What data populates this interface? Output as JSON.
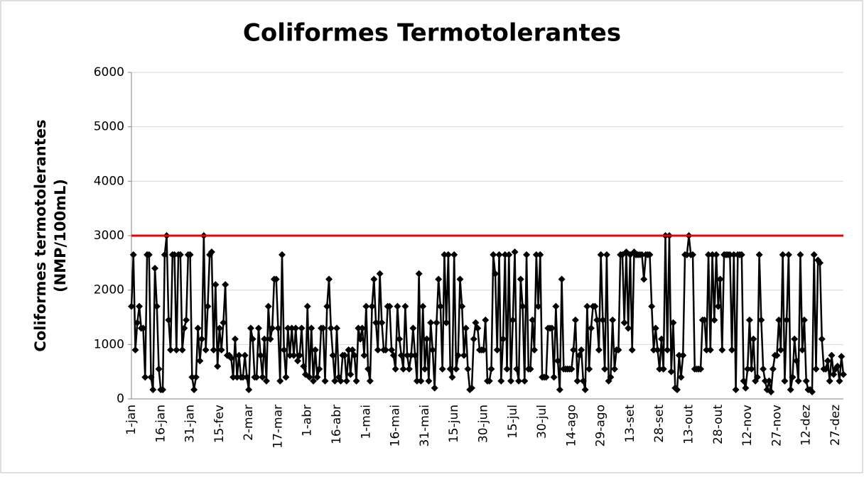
{
  "chart_data": {
    "type": "line",
    "title": "Coliformes Termotolerantes",
    "y_label": [
      "Coliformes termotolerantes",
      "(NMP/100mL)"
    ],
    "ylim": [
      0,
      6000
    ],
    "yticks": [
      0,
      1000,
      2000,
      3000,
      4000,
      5000,
      6000
    ],
    "grid": true,
    "reference_line": {
      "value": 3000,
      "color": "#e8000b"
    },
    "categories": [
      "1-jan",
      null,
      null,
      null,
      null,
      null,
      null,
      null,
      null,
      null,
      null,
      null,
      null,
      null,
      null,
      "16-jan",
      null,
      null,
      null,
      null,
      null,
      null,
      null,
      null,
      null,
      null,
      null,
      null,
      null,
      null,
      "31-jan",
      null,
      null,
      null,
      null,
      null,
      null,
      null,
      null,
      null,
      null,
      null,
      null,
      null,
      null,
      "15-fev",
      null,
      null,
      null,
      null,
      null,
      null,
      null,
      null,
      null,
      null,
      null,
      null,
      null,
      null,
      "2-mar",
      null,
      null,
      null,
      null,
      null,
      null,
      null,
      null,
      null,
      null,
      null,
      null,
      null,
      null,
      "17-mar",
      null,
      null,
      null,
      null,
      null,
      null,
      null,
      null,
      null,
      null,
      null,
      null,
      null,
      null,
      "1-abr",
      null,
      null,
      null,
      null,
      null,
      null,
      null,
      null,
      null,
      null,
      null,
      null,
      null,
      null,
      "16-abr",
      null,
      null,
      null,
      null,
      null,
      null,
      null,
      null,
      null,
      null,
      null,
      null,
      null,
      null,
      "1-mai",
      null,
      null,
      null,
      null,
      null,
      null,
      null,
      null,
      null,
      null,
      null,
      null,
      null,
      null,
      "16-mai",
      null,
      null,
      null,
      null,
      null,
      null,
      null,
      null,
      null,
      null,
      null,
      null,
      null,
      null,
      "31-mai",
      null,
      null,
      null,
      null,
      null,
      null,
      null,
      null,
      null,
      null,
      null,
      null,
      null,
      null,
      "15-jun",
      null,
      null,
      null,
      null,
      null,
      null,
      null,
      null,
      null,
      null,
      null,
      null,
      null,
      null,
      "30-jun",
      null,
      null,
      null,
      null,
      null,
      null,
      null,
      null,
      null,
      null,
      null,
      null,
      null,
      null,
      "15-jul",
      null,
      null,
      null,
      null,
      null,
      null,
      null,
      null,
      null,
      null,
      null,
      null,
      null,
      null,
      "30-jul",
      null,
      null,
      null,
      null,
      null,
      null,
      null,
      null,
      null,
      null,
      null,
      null,
      null,
      null,
      "14-ago",
      null,
      null,
      null,
      null,
      null,
      null,
      null,
      null,
      null,
      null,
      null,
      null,
      null,
      null,
      "29-ago",
      null,
      null,
      null,
      null,
      null,
      null,
      null,
      null,
      null,
      null,
      null,
      null,
      null,
      null,
      "13-set",
      null,
      null,
      null,
      null,
      null,
      null,
      null,
      null,
      null,
      null,
      null,
      null,
      null,
      null,
      "28-set",
      null,
      null,
      null,
      null,
      null,
      null,
      null,
      null,
      null,
      null,
      null,
      null,
      null,
      null,
      "13-out",
      null,
      null,
      null,
      null,
      null,
      null,
      null,
      null,
      null,
      null,
      null,
      null,
      null,
      null,
      "28-out",
      null,
      null,
      null,
      null,
      null,
      null,
      null,
      null,
      null,
      null,
      null,
      null,
      null,
      null,
      "12-nov",
      null,
      null,
      null,
      null,
      null,
      null,
      null,
      null,
      null,
      null,
      null,
      null,
      null,
      null,
      "27-nov",
      null,
      null,
      null,
      null,
      null,
      null,
      null,
      null,
      null,
      null,
      null,
      null,
      null,
      null,
      "12-dez",
      null,
      null,
      null,
      null,
      null,
      null,
      null,
      null,
      null,
      null,
      null,
      null,
      null,
      null,
      "27-dez",
      null,
      null,
      null,
      null
    ],
    "color": "#000000",
    "values": [
      1700,
      2650,
      900,
      1400,
      1700,
      1300,
      1300,
      400,
      2650,
      2650,
      400,
      170,
      2400,
      1700,
      550,
      170,
      170,
      2650,
      3000,
      1450,
      900,
      2650,
      2650,
      900,
      2650,
      2650,
      900,
      1300,
      1450,
      2650,
      2650,
      400,
      170,
      400,
      1300,
      700,
      1100,
      3000,
      900,
      1700,
      2650,
      2700,
      900,
      2100,
      600,
      1300,
      900,
      1400,
      2100,
      800,
      800,
      750,
      400,
      1100,
      400,
      800,
      400,
      400,
      800,
      400,
      170,
      1300,
      1100,
      400,
      400,
      1300,
      800,
      400,
      1100,
      330,
      1700,
      1100,
      1300,
      2200,
      2200,
      1300,
      330,
      2650,
      900,
      400,
      1300,
      800,
      1300,
      800,
      1300,
      700,
      800,
      1300,
      600,
      450,
      1700,
      400,
      1300,
      330,
      900,
      400,
      550,
      1300,
      1300,
      330,
      1700,
      2200,
      1300,
      800,
      330,
      1300,
      400,
      330,
      800,
      800,
      330,
      900,
      450,
      900,
      800,
      330,
      1300,
      1100,
      1300,
      800,
      1700,
      550,
      330,
      1700,
      2200,
      1400,
      900,
      2300,
      1400,
      900,
      900,
      1700,
      1700,
      900,
      800,
      550,
      1700,
      1100,
      800,
      550,
      1700,
      800,
      550,
      800,
      1300,
      800,
      330,
      2300,
      330,
      1700,
      550,
      1100,
      330,
      1400,
      900,
      200,
      1400,
      2200,
      1700,
      550,
      2650,
      1400,
      2650,
      550,
      400,
      2650,
      550,
      800,
      2200,
      1700,
      800,
      1300,
      550,
      170,
      200,
      1100,
      1400,
      1300,
      900,
      900,
      900,
      1450,
      330,
      330,
      550,
      2650,
      2300,
      900,
      2650,
      330,
      1100,
      2650,
      550,
      2650,
      330,
      1450,
      2700,
      550,
      330,
      2200,
      1700,
      330,
      2650,
      550,
      550,
      1450,
      900,
      2650,
      1700,
      2650,
      400,
      400,
      400,
      1300,
      1300,
      1300,
      400,
      1700,
      700,
      170,
      2200,
      550,
      550,
      550,
      550,
      550,
      900,
      1450,
      330,
      800,
      900,
      330,
      170,
      1700,
      550,
      1300,
      1700,
      1700,
      1450,
      900,
      2650,
      1450,
      550,
      2650,
      330,
      400,
      1450,
      550,
      900,
      900,
      2650,
      2650,
      1400,
      2700,
      1300,
      2650,
      900,
      2700,
      2650,
      2650,
      2650,
      2650,
      2200,
      2650,
      2650,
      2650,
      1700,
      900,
      1300,
      900,
      550,
      1100,
      550,
      3000,
      900,
      3000,
      500,
      1400,
      200,
      170,
      800,
      400,
      800,
      2650,
      2650,
      3000,
      2650,
      2650,
      550,
      550,
      550,
      550,
      1450,
      1450,
      900,
      2650,
      900,
      2650,
      1450,
      2650,
      1700,
      2200,
      900,
      2650,
      2650,
      2650,
      2650,
      900,
      2650,
      170,
      2650,
      2650,
      2650,
      330,
      200,
      550,
      1450,
      550,
      1100,
      330,
      400,
      2650,
      1450,
      550,
      330,
      170,
      330,
      130,
      550,
      800,
      800,
      1450,
      900,
      2650,
      330,
      1450,
      2650,
      170,
      400,
      1100,
      700,
      330,
      2650,
      900,
      1450,
      330,
      170,
      170,
      130,
      2650,
      550,
      2550,
      2500,
      1100,
      550,
      550,
      700,
      330,
      800,
      450,
      550,
      600,
      330,
      780,
      450
    ]
  }
}
